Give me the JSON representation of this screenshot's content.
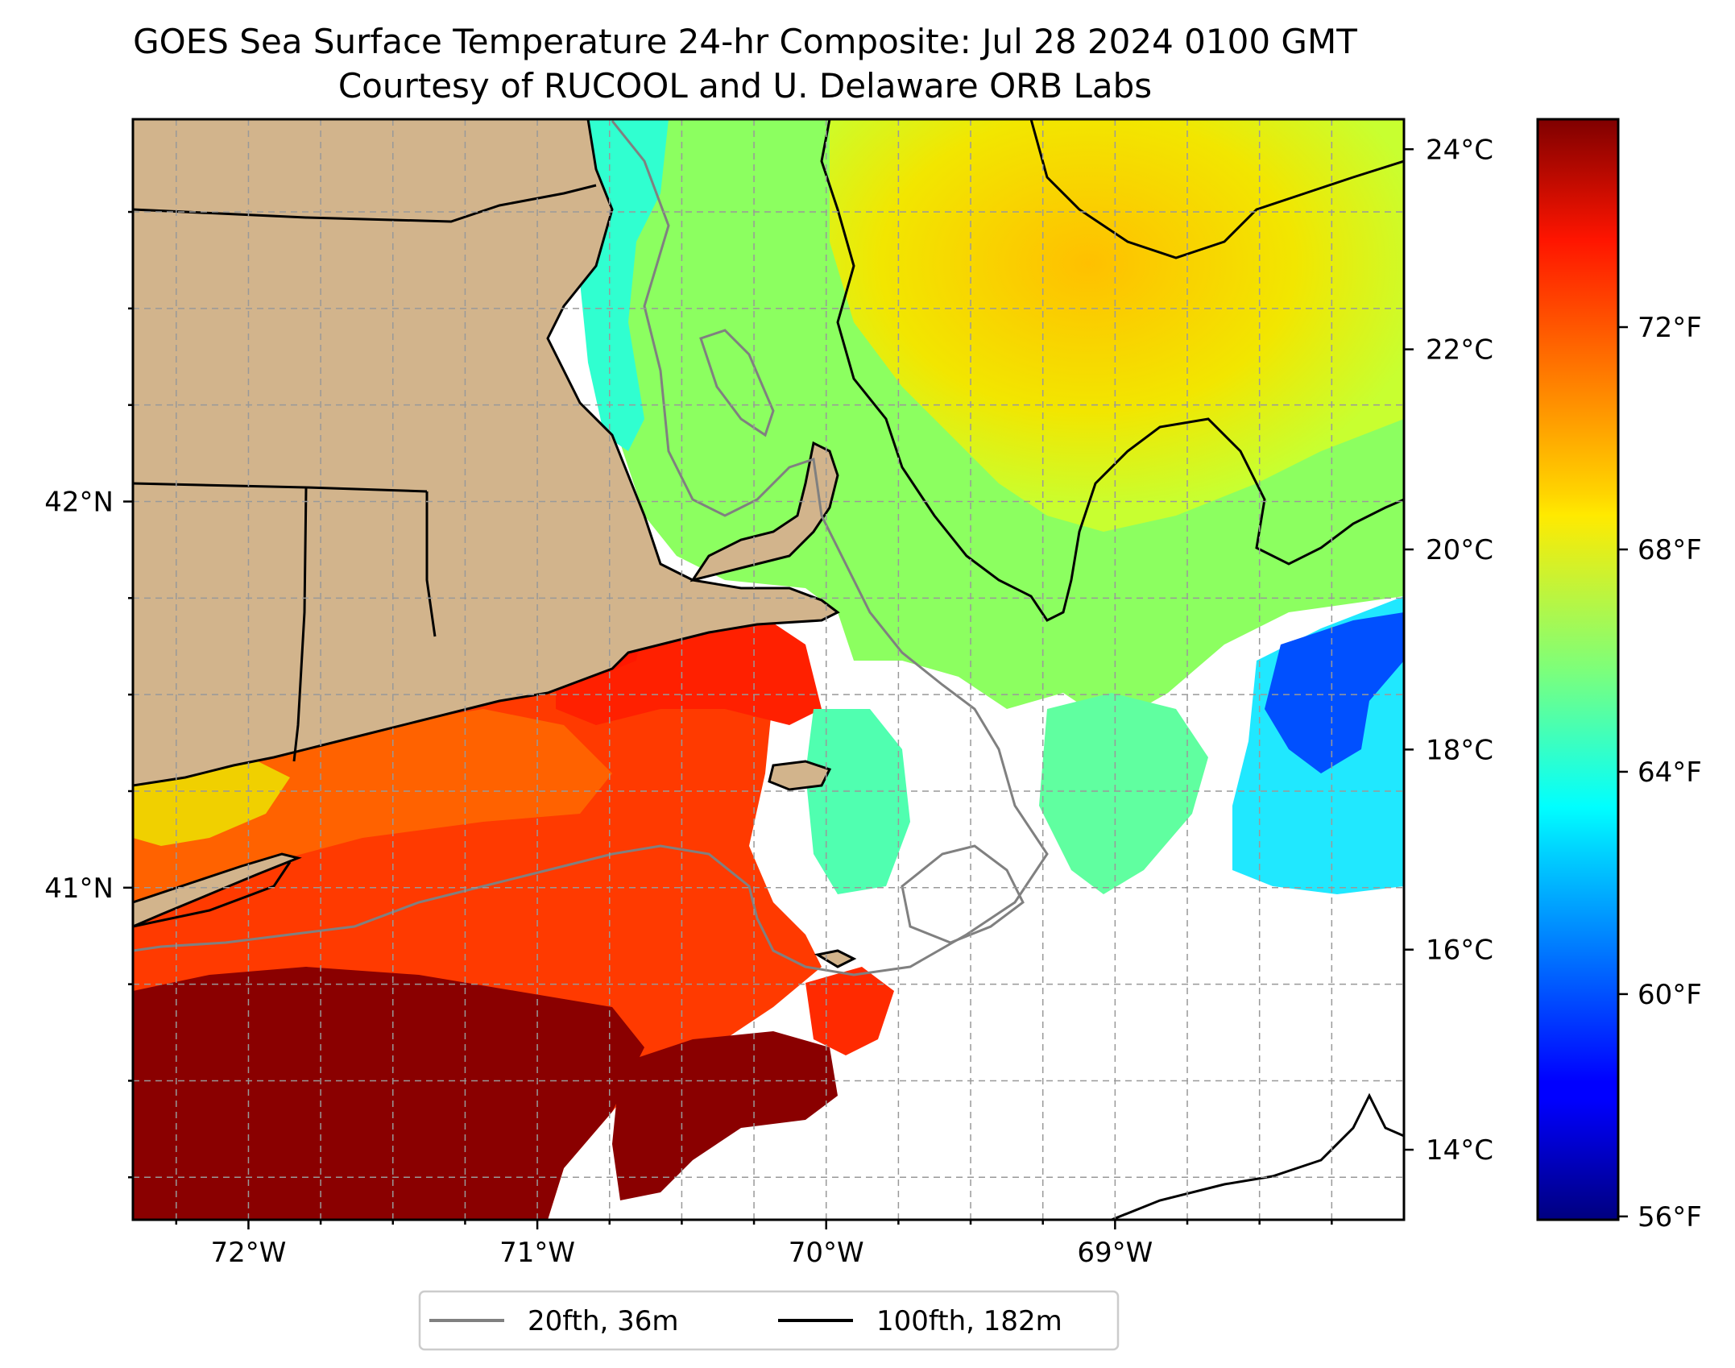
{
  "title": {
    "line1": "GOES Sea Surface Temperature 24-hr Composite: Jul 28 2024 0100 GMT",
    "line2": "Courtesy of RUCOOL and U. Delaware ORB Labs"
  },
  "map": {
    "lon_range": [
      -72.4,
      -68.0
    ],
    "lat_range": [
      40.14,
      42.99
    ],
    "lon_ticks": [
      {
        "value": -72,
        "label": "72°W"
      },
      {
        "value": -71,
        "label": "71°W"
      },
      {
        "value": -70,
        "label": "70°W"
      },
      {
        "value": -69,
        "label": "69°W"
      }
    ],
    "lat_ticks": [
      {
        "value": 42,
        "label": "42°N"
      },
      {
        "value": 41,
        "label": "41°N"
      }
    ],
    "grid": true,
    "land_color": "#d2b48c"
  },
  "colorbar": {
    "celsius_range": [
      13.3,
      24.3
    ],
    "celsius_ticks": [
      {
        "value": 24,
        "label": "24°C"
      },
      {
        "value": 22,
        "label": "22°C"
      },
      {
        "value": 20,
        "label": "20°C"
      },
      {
        "value": 18,
        "label": "18°C"
      },
      {
        "value": 16,
        "label": "16°C"
      },
      {
        "value": 14,
        "label": "14°C"
      }
    ],
    "fahrenheit_ticks": [
      {
        "value": 72,
        "label": "72°F"
      },
      {
        "value": 68,
        "label": "68°F"
      },
      {
        "value": 64,
        "label": "64°F"
      },
      {
        "value": 60,
        "label": "60°F"
      },
      {
        "value": 56,
        "label": "56°F"
      }
    ],
    "colormap": "jet"
  },
  "legend": {
    "placement": "bottom-center",
    "items": [
      {
        "label": "20fth, 36m",
        "color": "#808080"
      },
      {
        "label": "100fth, 182m",
        "color": "#000000"
      }
    ]
  }
}
